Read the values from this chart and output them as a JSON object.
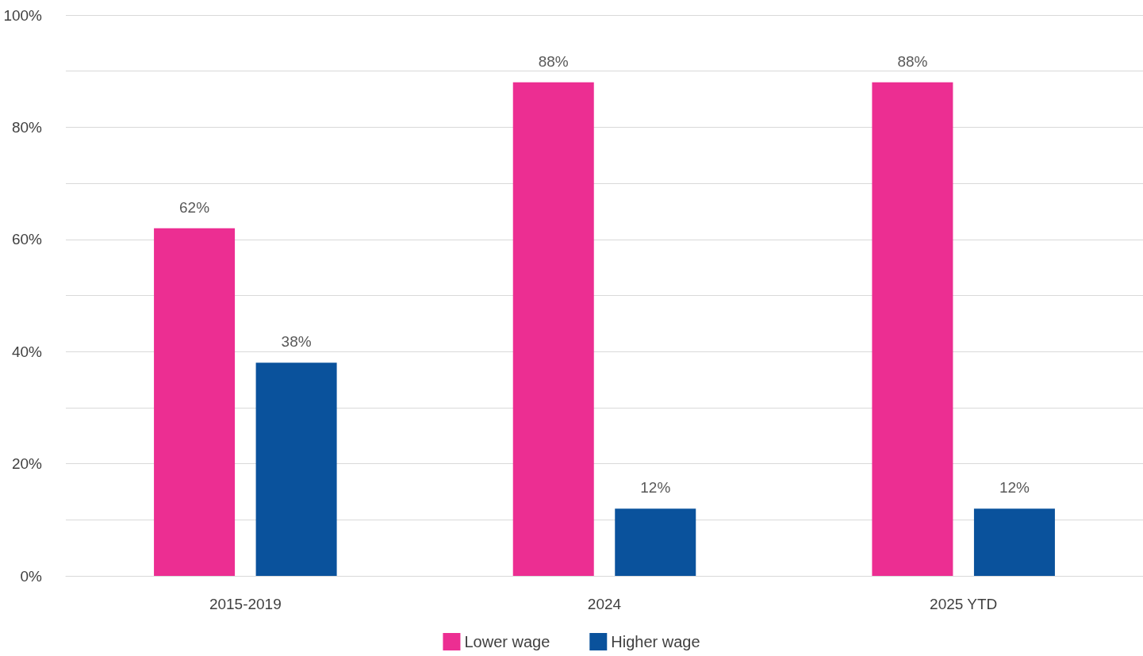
{
  "chart_data": {
    "type": "bar",
    "categories": [
      "2015-2019",
      "2024",
      "2025 YTD"
    ],
    "series": [
      {
        "name": "Lower wage",
        "color": "#ec2e92",
        "values": [
          62,
          88,
          88
        ],
        "value_labels": [
          "62%",
          "88%",
          "88%"
        ]
      },
      {
        "name": "Higher wage",
        "color": "#0a529c",
        "values": [
          38,
          12,
          12
        ],
        "value_labels": [
          "38%",
          "12%",
          "12%"
        ]
      }
    ],
    "ylim": [
      0,
      100
    ],
    "yticks": [
      {
        "value": 0,
        "label": "0%"
      },
      {
        "value": 10,
        "label": null
      },
      {
        "value": 20,
        "label": "20%"
      },
      {
        "value": 30,
        "label": null
      },
      {
        "value": 40,
        "label": "40%"
      },
      {
        "value": 50,
        "label": null
      },
      {
        "value": 60,
        "label": "60%"
      },
      {
        "value": 70,
        "label": null
      },
      {
        "value": 80,
        "label": "80%"
      },
      {
        "value": 90,
        "label": null
      },
      {
        "value": 100,
        "label": "100%"
      }
    ],
    "grid": "y",
    "legend": "bottom"
  }
}
